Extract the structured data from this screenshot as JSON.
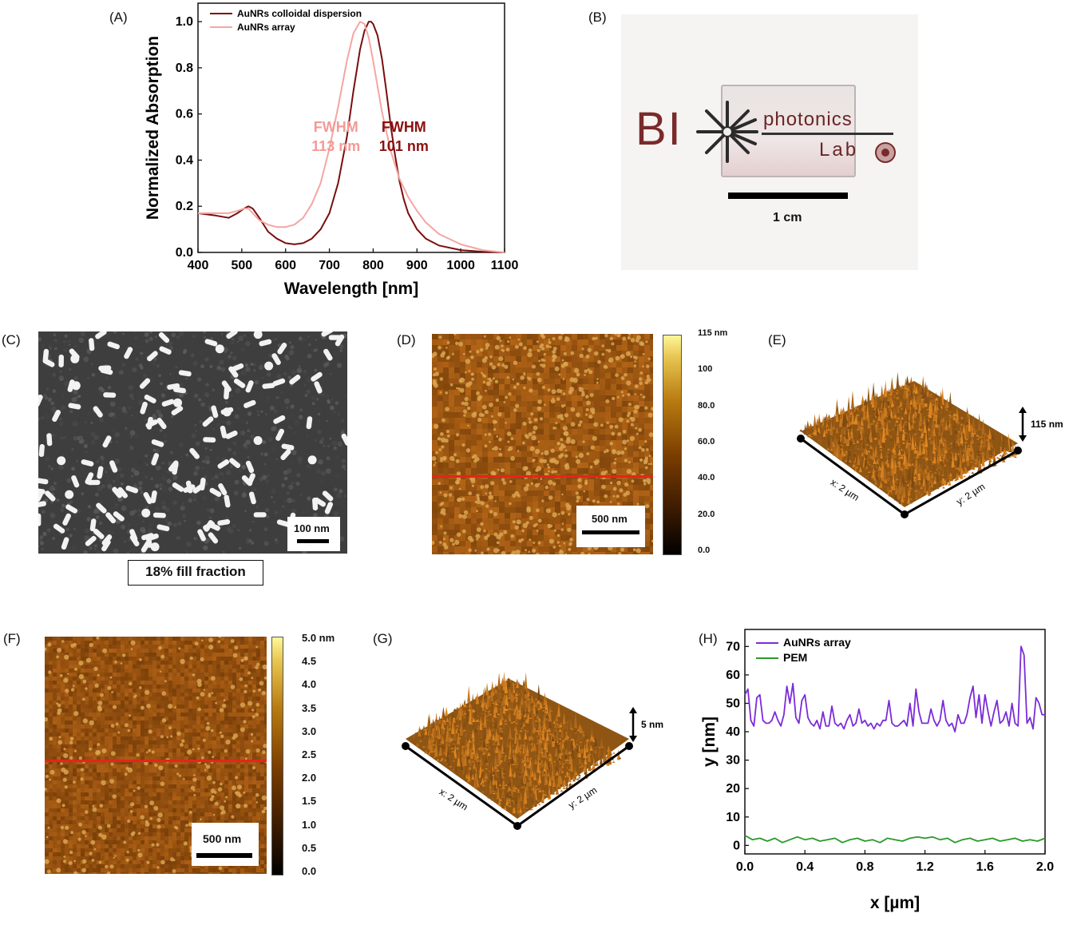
{
  "panels": {
    "A": {
      "label": "(A)"
    },
    "B": {
      "label": "(B)",
      "logo_text_bi": "BI",
      "logo_text_photonics": "photonics",
      "logo_text_lab": "Lab",
      "scale": "1 cm"
    },
    "C": {
      "label": "(C)",
      "scale": "100 nm",
      "caption": "18% fill fraction"
    },
    "D": {
      "label": "(D)",
      "scale": "500 nm",
      "colorbar_ticks": [
        "115 nm",
        "100",
        "80.0",
        "60.0",
        "40.0",
        "20.0",
        "0.0"
      ]
    },
    "E": {
      "label": "(E)",
      "height": "115 nm",
      "x_axis": "x: 2 µm",
      "y_axis": "y: 2 µm"
    },
    "F": {
      "label": "(F)",
      "scale": "500 nm",
      "colorbar_ticks": [
        "5.0 nm",
        "4.5",
        "4.0",
        "3.5",
        "3.0",
        "2.5",
        "2.0",
        "1.5",
        "1.0",
        "0.5",
        "0.0"
      ]
    },
    "G": {
      "label": "(G)",
      "height": "5 nm",
      "x_axis": "x: 2 µm",
      "y_axis": "y: 2 µm"
    },
    "H": {
      "label": "(H)"
    }
  },
  "chart_data": [
    {
      "type": "line",
      "panel": "A",
      "xlabel": "Wavelength [nm]",
      "ylabel": "Normalized Absorption",
      "xlim": [
        400,
        1100
      ],
      "ylim": [
        0,
        1.08
      ],
      "xticks": [
        400,
        500,
        600,
        700,
        800,
        900,
        1000,
        1100
      ],
      "yticks": [
        0.0,
        0.2,
        0.4,
        0.6,
        0.8,
        1.0
      ],
      "legend_position": "top-left",
      "annotations": [
        {
          "text": "FWHM",
          "line2": "113 nm",
          "color": "#f39a96",
          "x": 715,
          "y": 0.55
        },
        {
          "text": "FWHM",
          "line2": "101 nm",
          "color": "#8b1010",
          "x": 870,
          "y": 0.55
        }
      ],
      "series": [
        {
          "name": "AuNRs colloidal dispersion",
          "color": "#7a0e0e",
          "x": [
            400,
            440,
            470,
            490,
            505,
            515,
            525,
            540,
            560,
            580,
            600,
            620,
            640,
            660,
            680,
            700,
            720,
            740,
            755,
            770,
            780,
            790,
            795,
            800,
            810,
            820,
            830,
            840,
            850,
            860,
            870,
            880,
            900,
            920,
            950,
            1000,
            1050,
            1100
          ],
          "y": [
            0.17,
            0.16,
            0.15,
            0.17,
            0.19,
            0.2,
            0.19,
            0.15,
            0.09,
            0.06,
            0.04,
            0.035,
            0.04,
            0.06,
            0.1,
            0.17,
            0.3,
            0.5,
            0.7,
            0.88,
            0.96,
            1.0,
            1.0,
            0.99,
            0.94,
            0.84,
            0.7,
            0.55,
            0.42,
            0.31,
            0.23,
            0.17,
            0.1,
            0.06,
            0.03,
            0.01,
            0.003,
            0.0
          ]
        },
        {
          "name": "AuNRs array",
          "color": "#f4a6a3",
          "x": [
            400,
            440,
            470,
            490,
            505,
            515,
            525,
            540,
            560,
            580,
            600,
            620,
            640,
            660,
            680,
            700,
            720,
            740,
            755,
            770,
            780,
            790,
            800,
            810,
            820,
            840,
            860,
            880,
            900,
            920,
            950,
            1000,
            1050,
            1100
          ],
          "y": [
            0.17,
            0.17,
            0.17,
            0.18,
            0.19,
            0.19,
            0.17,
            0.14,
            0.12,
            0.11,
            0.11,
            0.12,
            0.15,
            0.21,
            0.3,
            0.45,
            0.63,
            0.83,
            0.95,
            1.0,
            0.99,
            0.93,
            0.83,
            0.72,
            0.61,
            0.44,
            0.32,
            0.24,
            0.18,
            0.13,
            0.08,
            0.035,
            0.01,
            0.0
          ]
        }
      ]
    },
    {
      "type": "line",
      "panel": "H",
      "xlabel": "x [µm]",
      "ylabel": "y [nm]",
      "xlim": [
        0.0,
        2.0
      ],
      "ylim": [
        -3,
        76
      ],
      "xticks": [
        0.0,
        0.4,
        0.8,
        1.2,
        1.6,
        2.0
      ],
      "yticks": [
        0,
        10,
        20,
        30,
        40,
        50,
        60,
        70
      ],
      "legend_position": "top-left",
      "series": [
        {
          "name": "AuNRs array",
          "color": "#7b2bd9",
          "x": [
            0.0,
            0.02,
            0.04,
            0.06,
            0.08,
            0.1,
            0.12,
            0.14,
            0.16,
            0.18,
            0.2,
            0.22,
            0.24,
            0.26,
            0.28,
            0.3,
            0.32,
            0.34,
            0.36,
            0.38,
            0.4,
            0.42,
            0.44,
            0.46,
            0.48,
            0.5,
            0.52,
            0.54,
            0.56,
            0.58,
            0.6,
            0.62,
            0.64,
            0.66,
            0.68,
            0.7,
            0.72,
            0.74,
            0.76,
            0.78,
            0.8,
            0.82,
            0.84,
            0.86,
            0.88,
            0.9,
            0.92,
            0.94,
            0.96,
            0.98,
            1.0,
            1.02,
            1.04,
            1.06,
            1.08,
            1.1,
            1.12,
            1.14,
            1.16,
            1.18,
            1.2,
            1.22,
            1.24,
            1.26,
            1.28,
            1.3,
            1.32,
            1.34,
            1.36,
            1.38,
            1.4,
            1.42,
            1.44,
            1.46,
            1.48,
            1.5,
            1.52,
            1.54,
            1.56,
            1.58,
            1.6,
            1.62,
            1.64,
            1.66,
            1.68,
            1.7,
            1.72,
            1.74,
            1.76,
            1.78,
            1.8,
            1.82,
            1.84,
            1.86,
            1.88,
            1.9,
            1.92,
            1.94,
            1.96,
            1.98,
            2.0
          ],
          "y": [
            53,
            55,
            44,
            42,
            52,
            53,
            44,
            43,
            43,
            44,
            47,
            44,
            42,
            46,
            56,
            50,
            57,
            45,
            43,
            51,
            53,
            45,
            43,
            42,
            44,
            41,
            47,
            42,
            42,
            49,
            43,
            42,
            43,
            41,
            44,
            46,
            42,
            43,
            48,
            43,
            44,
            42,
            43,
            41,
            43,
            42,
            44,
            44,
            51,
            43,
            42,
            42,
            43,
            44,
            42,
            50,
            42,
            55,
            47,
            43,
            43,
            43,
            48,
            44,
            42,
            44,
            51,
            44,
            42,
            43,
            40,
            46,
            43,
            43,
            46,
            52,
            56,
            45,
            53,
            43,
            53,
            47,
            42,
            47,
            51,
            43,
            44,
            47,
            42,
            50,
            43,
            42,
            70,
            67,
            43,
            45,
            41,
            52,
            50,
            46,
            46
          ]
        },
        {
          "name": "PEM",
          "color": "#2a9a2a",
          "x": [
            0.0,
            0.05,
            0.1,
            0.15,
            0.2,
            0.25,
            0.3,
            0.35,
            0.4,
            0.45,
            0.5,
            0.55,
            0.6,
            0.65,
            0.7,
            0.75,
            0.8,
            0.85,
            0.9,
            0.95,
            1.0,
            1.05,
            1.1,
            1.15,
            1.2,
            1.25,
            1.3,
            1.35,
            1.4,
            1.45,
            1.5,
            1.55,
            1.6,
            1.65,
            1.7,
            1.75,
            1.8,
            1.85,
            1.9,
            1.95,
            2.0
          ],
          "y": [
            3.5,
            2.0,
            2.5,
            1.5,
            2.5,
            1.0,
            2.0,
            3.0,
            2.0,
            2.5,
            1.5,
            2.0,
            2.5,
            1.0,
            2.0,
            2.5,
            1.5,
            2.0,
            1.0,
            2.5,
            2.0,
            1.5,
            2.5,
            3.0,
            2.5,
            3.0,
            2.0,
            2.5,
            1.0,
            2.0,
            2.5,
            1.5,
            2.0,
            2.5,
            1.5,
            2.0,
            2.5,
            1.5,
            2.0,
            1.5,
            2.5
          ]
        }
      ]
    }
  ]
}
